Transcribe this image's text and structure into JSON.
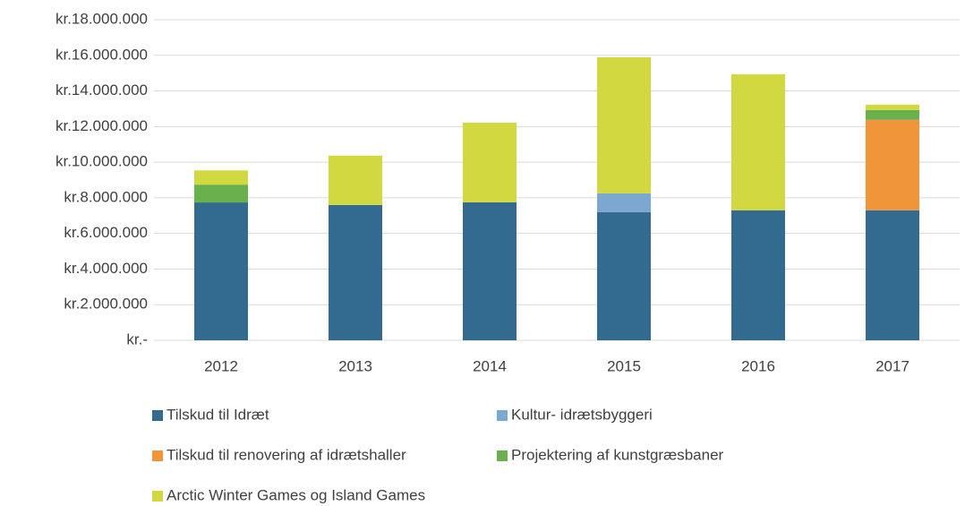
{
  "chart_data": {
    "type": "stacked_bar",
    "categories": [
      "2012",
      "2013",
      "2014",
      "2015",
      "2016",
      "2017"
    ],
    "series": [
      {
        "name": "Tilskud til Idræt",
        "color": "#336a90",
        "values": [
          7740000,
          7600000,
          7750000,
          7200000,
          7300000,
          7300000
        ]
      },
      {
        "name": "Kultur- idrætsbyggeri",
        "color": "#7ba7d0",
        "values": [
          0,
          0,
          0,
          1050000,
          0,
          0
        ]
      },
      {
        "name": "Tilskud til renovering af idrætshaller",
        "color": "#f0953a",
        "values": [
          0,
          0,
          0,
          0,
          0,
          5080000
        ]
      },
      {
        "name": "Projektering af kunstgræsbaner",
        "color": "#6ab04c",
        "values": [
          1000000,
          0,
          0,
          0,
          0,
          550000
        ]
      },
      {
        "name": "Arctic Winter Games og Island Games",
        "color": "#d2d940",
        "values": [
          800000,
          2770000,
          4470000,
          7640000,
          7640000,
          300000
        ]
      }
    ],
    "ylim": [
      0,
      18000000
    ],
    "yticks": [
      {
        "value": 0,
        "label": "kr.-"
      },
      {
        "value": 2000000,
        "label": "kr.2.000.000"
      },
      {
        "value": 4000000,
        "label": "kr.4.000.000"
      },
      {
        "value": 6000000,
        "label": "kr.6.000.000"
      },
      {
        "value": 8000000,
        "label": "kr.8.000.000"
      },
      {
        "value": 10000000,
        "label": "kr.10.000.000"
      },
      {
        "value": 12000000,
        "label": "kr.12.000.000"
      },
      {
        "value": 14000000,
        "label": "kr.14.000.000"
      },
      {
        "value": 16000000,
        "label": "kr.16.000.000"
      },
      {
        "value": 18000000,
        "label": "kr.18.000.000"
      }
    ],
    "grid": true,
    "legend": "bottom"
  }
}
